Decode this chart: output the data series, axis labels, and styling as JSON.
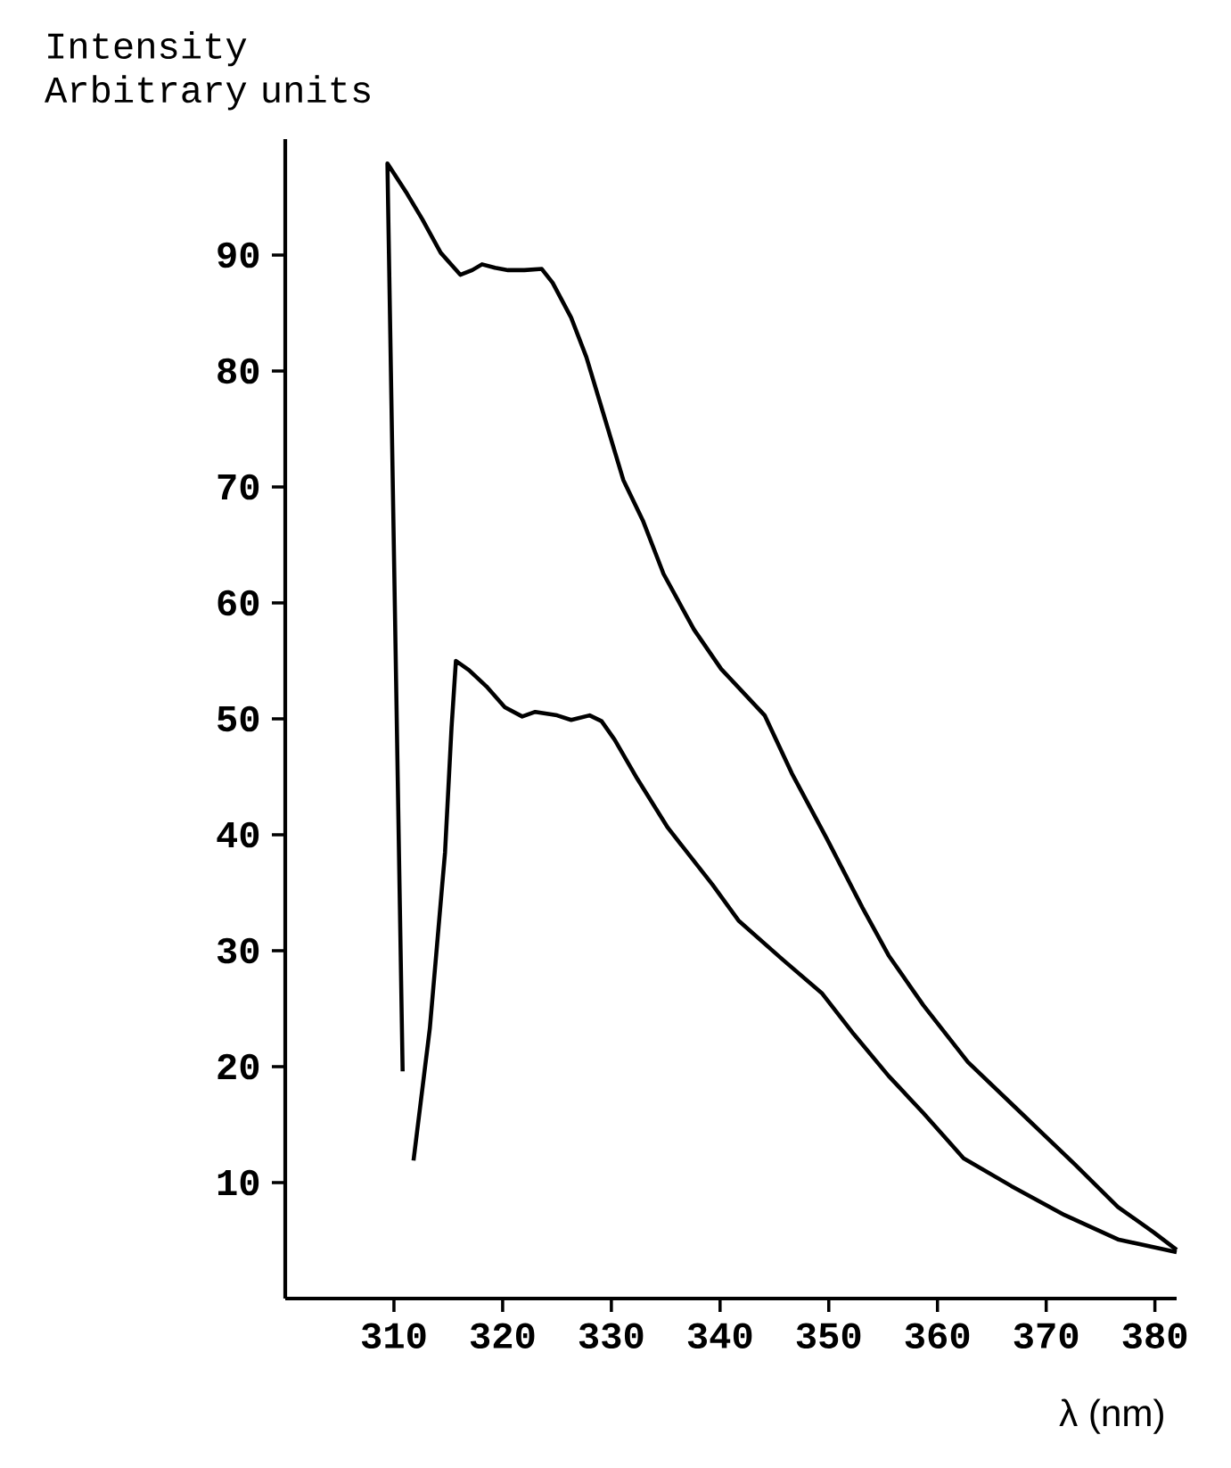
{
  "chart_data": {
    "type": "line",
    "xlabel": "λ (nm)",
    "ylabel": "Intensity Arbitrary units",
    "xlim": [
      300,
      382
    ],
    "ylim": [
      0,
      100
    ],
    "xticks": [
      310,
      320,
      330,
      340,
      350,
      360,
      370,
      380
    ],
    "yticks": [
      10,
      20,
      30,
      40,
      50,
      60,
      70,
      80,
      90
    ],
    "series": [
      {
        "color": "#000000",
        "x": [
          310.8,
          309.4,
          311.2,
          312.6,
          314.3,
          316.1,
          317.2,
          318.1,
          319.3,
          320.5,
          322.0,
          323.6,
          324.6,
          326.3,
          327.7,
          329.4,
          331.1,
          332.9,
          334.8,
          337.6,
          340.1,
          344.1,
          346.6,
          349.8,
          353.1,
          355.5,
          358.7,
          362.8,
          367.7,
          372.6,
          376.6,
          379.9,
          382.0
        ],
        "values": [
          19.6,
          97.9,
          95.3,
          93.1,
          90.2,
          88.3,
          88.7,
          89.2,
          88.9,
          88.7,
          88.7,
          88.8,
          87.6,
          84.6,
          81.2,
          75.9,
          70.6,
          67.1,
          62.5,
          57.7,
          54.3,
          50.3,
          45.3,
          39.7,
          33.7,
          29.6,
          25.3,
          20.4,
          16.0,
          11.6,
          7.9,
          5.7,
          4.2
        ]
      },
      {
        "color": "#000000",
        "x": [
          311.8,
          313.3,
          314.7,
          315.3,
          315.7,
          316.9,
          318.5,
          320.2,
          321.8,
          323.0,
          325.0,
          326.3,
          328.0,
          329.1,
          330.3,
          332.4,
          335.2,
          339.3,
          341.7,
          345.8,
          349.4,
          352.3,
          355.5,
          358.7,
          362.4,
          366.8,
          371.7,
          376.6,
          382.0
        ],
        "values": [
          11.9,
          23.3,
          38.5,
          49.3,
          55.0,
          54.2,
          52.8,
          51.0,
          50.2,
          50.6,
          50.3,
          49.9,
          50.3,
          49.8,
          48.2,
          44.8,
          40.6,
          35.7,
          32.6,
          29.2,
          26.3,
          22.8,
          19.2,
          16.0,
          12.1,
          9.7,
          7.2,
          5.1,
          4.0
        ]
      }
    ]
  }
}
